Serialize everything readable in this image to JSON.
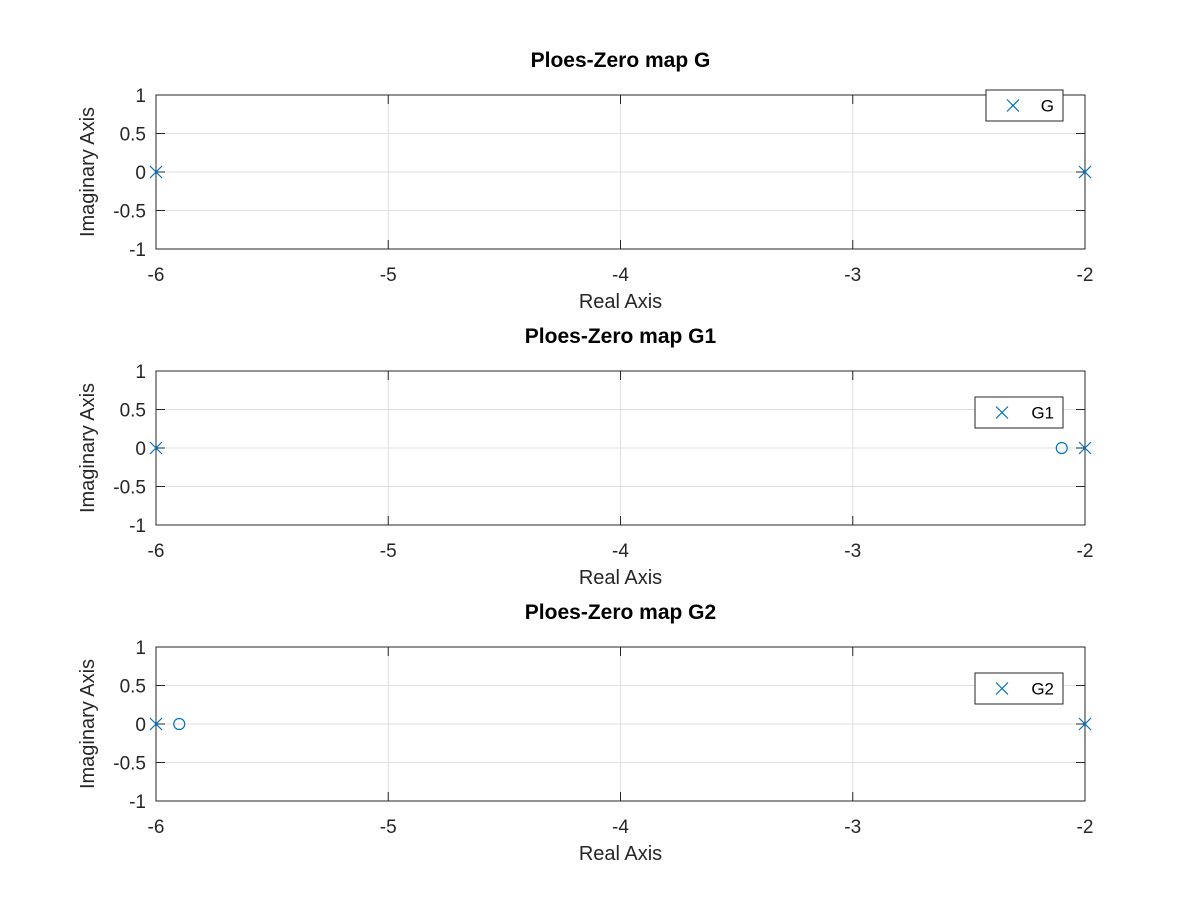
{
  "chart_data": [
    {
      "type": "scatter",
      "title": "Ploes-Zero map G",
      "xlabel": "Real Axis",
      "ylabel": "Imaginary Axis",
      "xlim": [
        -6,
        -2
      ],
      "ylim": [
        -1,
        1
      ],
      "xticks": [
        "-6",
        "-5",
        "-4",
        "-3",
        "-2"
      ],
      "yticks": [
        "1",
        "0.5",
        "0",
        "-0.5",
        "-1"
      ],
      "grid": true,
      "legend": {
        "position": "top-right",
        "entries": [
          "G"
        ]
      },
      "series": [
        {
          "name": "G",
          "marker": "x",
          "role": "poles",
          "points": [
            [
              -6,
              0
            ],
            [
              -2,
              0
            ]
          ]
        },
        {
          "marker": "o",
          "role": "zeros",
          "points": []
        }
      ]
    },
    {
      "type": "scatter",
      "title": "Ploes-Zero map G1",
      "xlabel": "Real Axis",
      "ylabel": "Imaginary Axis",
      "xlim": [
        -6,
        -2
      ],
      "ylim": [
        -1,
        1
      ],
      "xticks": [
        "-6",
        "-5",
        "-4",
        "-3",
        "-2"
      ],
      "yticks": [
        "1",
        "0.5",
        "0",
        "-0.5",
        "-1"
      ],
      "grid": true,
      "legend": {
        "position": "right",
        "entries": [
          "G1"
        ]
      },
      "series": [
        {
          "name": "G1",
          "marker": "x",
          "role": "poles",
          "points": [
            [
              -6,
              0
            ],
            [
              -2,
              0
            ]
          ]
        },
        {
          "marker": "o",
          "role": "zeros",
          "points": [
            [
              -2.1,
              0
            ]
          ]
        }
      ]
    },
    {
      "type": "scatter",
      "title": "Ploes-Zero map G2",
      "xlabel": "Real Axis",
      "ylabel": "Imaginary Axis",
      "xlim": [
        -6,
        -2
      ],
      "ylim": [
        -1,
        1
      ],
      "xticks": [
        "-6",
        "-5",
        "-4",
        "-3",
        "-2"
      ],
      "yticks": [
        "1",
        "0.5",
        "0",
        "-0.5",
        "-1"
      ],
      "grid": true,
      "legend": {
        "position": "right",
        "entries": [
          "G2"
        ]
      },
      "series": [
        {
          "name": "G2",
          "marker": "x",
          "role": "poles",
          "points": [
            [
              -6,
              0
            ],
            [
              -2,
              0
            ]
          ]
        },
        {
          "marker": "o",
          "role": "zeros",
          "points": [
            [
              -5.9,
              0
            ]
          ]
        }
      ]
    }
  ],
  "colors": {
    "marker": "#0072BD",
    "axes": "#262626",
    "grid": "#dfdfdf",
    "background": "#ffffff"
  }
}
